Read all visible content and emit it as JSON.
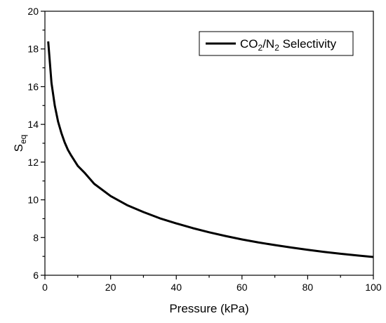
{
  "chart_data": {
    "type": "line",
    "xlabel": "Pressure (kPa)",
    "ylabel_main": "S",
    "ylabel_sub": "eq",
    "xlim": [
      0,
      100
    ],
    "ylim": [
      6,
      20
    ],
    "x_ticks": [
      0,
      20,
      40,
      60,
      80,
      100
    ],
    "y_ticks": [
      6,
      8,
      10,
      12,
      14,
      16,
      18,
      20
    ],
    "grid": false,
    "legend_position": "top-right",
    "legend": {
      "part1": "CO",
      "sub1": "2",
      "part2": "/N",
      "sub2": "2",
      "part3": " Selectivity"
    },
    "series": [
      {
        "name": "CO2/N2 Selectivity",
        "color": "#000000",
        "x": [
          1,
          2,
          3,
          4,
          5,
          6,
          7,
          8,
          10,
          12,
          15,
          20,
          25,
          30,
          35,
          40,
          45,
          50,
          55,
          60,
          65,
          70,
          75,
          80,
          85,
          90,
          95,
          100
        ],
        "y": [
          18.4,
          16.2,
          15.0,
          14.15,
          13.55,
          13.05,
          12.65,
          12.35,
          11.8,
          11.45,
          10.85,
          10.2,
          9.72,
          9.35,
          9.02,
          8.75,
          8.5,
          8.28,
          8.08,
          7.9,
          7.74,
          7.6,
          7.47,
          7.35,
          7.24,
          7.14,
          7.05,
          6.97
        ]
      }
    ]
  }
}
